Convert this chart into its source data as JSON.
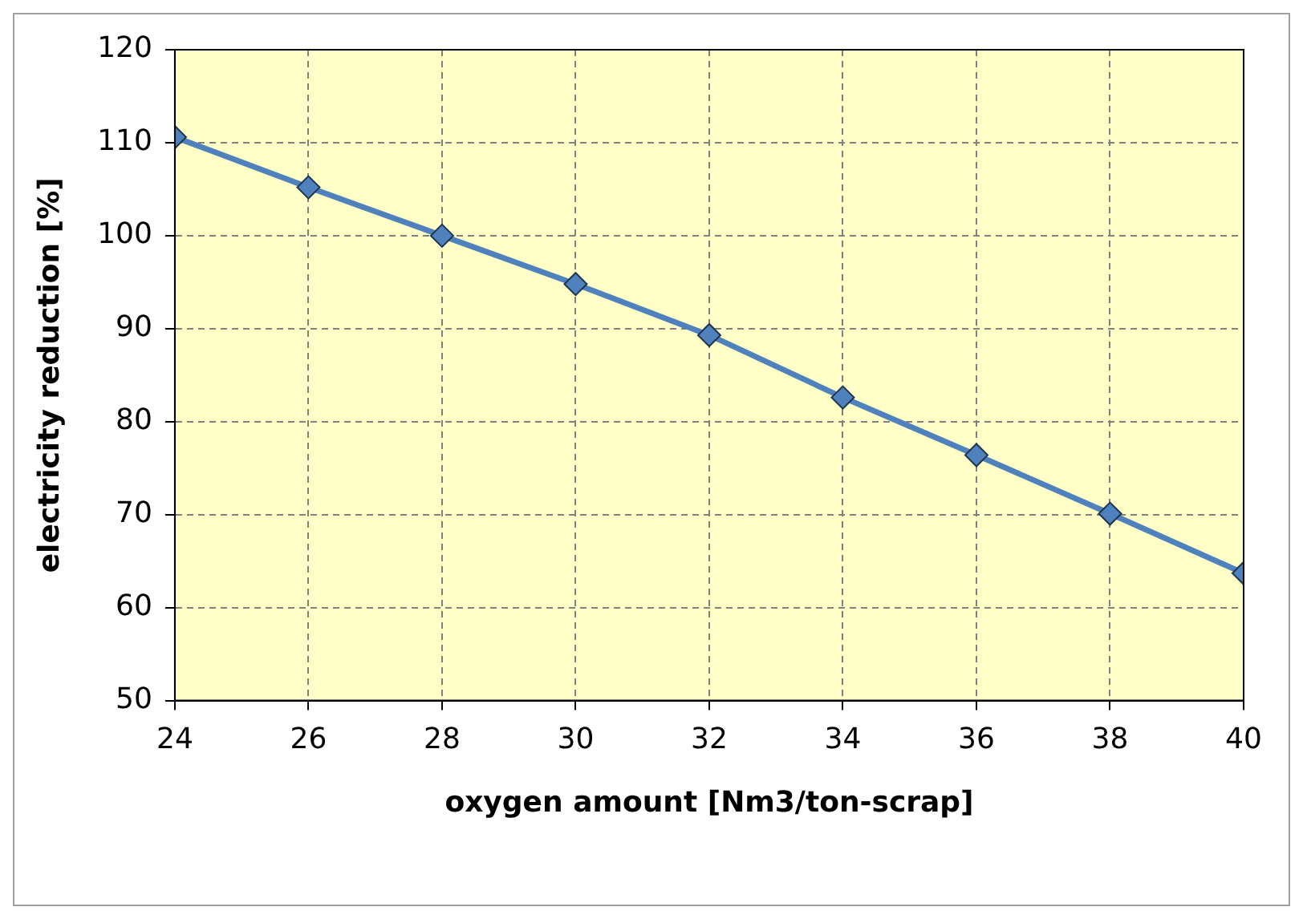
{
  "chart_data": {
    "type": "line",
    "xlabel": "oxygen amount [Nm3/ton-scrap]",
    "ylabel": "electricity reduction [%]",
    "x": [
      24,
      26,
      28,
      30,
      32,
      34,
      36,
      38,
      40
    ],
    "series": [
      {
        "color": "#4f81bd",
        "values": [
          110.6,
          105.2,
          100,
          94.8,
          89.3,
          82.6,
          76.4,
          70.1,
          63.7
        ]
      }
    ],
    "xlim": [
      24,
      40
    ],
    "xticks": [
      24,
      26,
      28,
      30,
      32,
      34,
      36,
      38,
      40
    ],
    "ylim": [
      50,
      120
    ],
    "yticks": [
      50,
      60,
      70,
      80,
      90,
      100,
      110,
      120
    ],
    "grid": true,
    "legend": false,
    "marker": "diamond",
    "line_style": "solid"
  }
}
